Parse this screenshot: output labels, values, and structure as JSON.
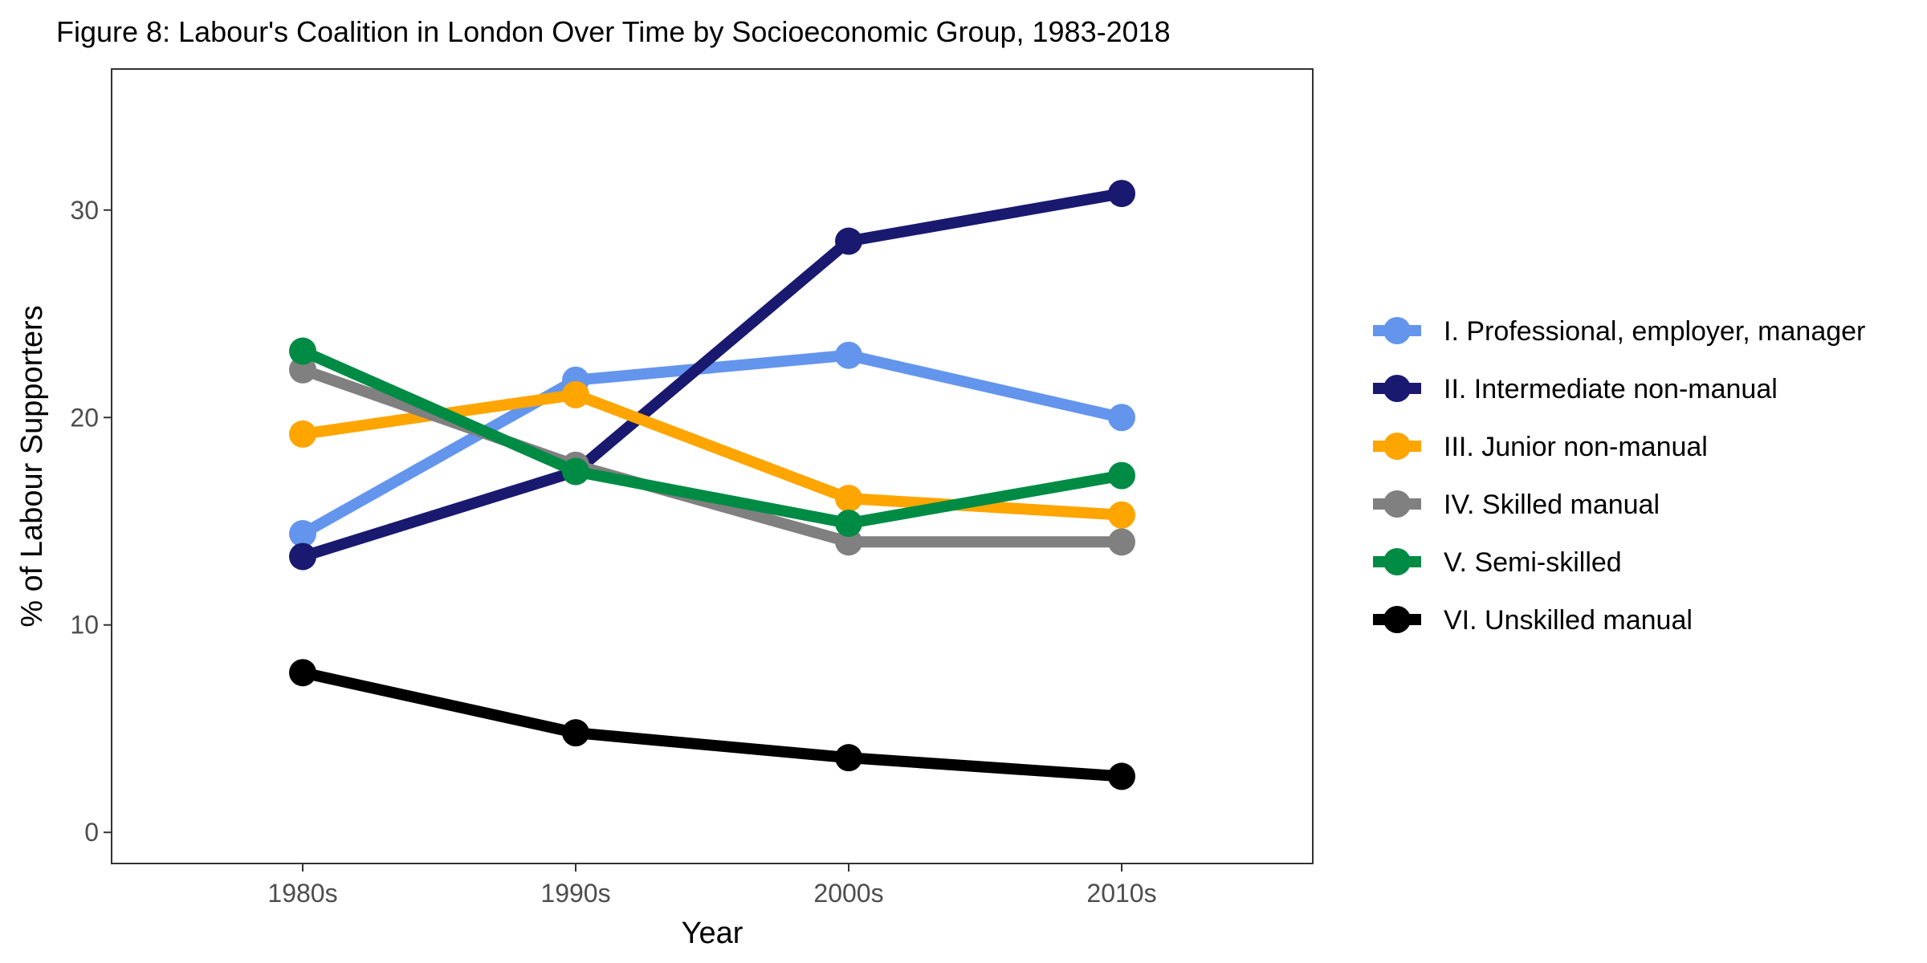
{
  "chart_data": {
    "type": "line",
    "title": "Figure 8: Labour's Coalition in London Over Time by Socioeconomic Group, 1983-2018",
    "xlabel": "Year",
    "ylabel": "% of Labour Supporters",
    "categories": [
      "1980s",
      "1990s",
      "2000s",
      "2010s"
    ],
    "ylim": [
      -1.5,
      36.8
    ],
    "yticks": [
      0,
      10,
      20,
      30
    ],
    "grid": false,
    "legend_position": "right",
    "series": [
      {
        "name": "I. Professional, employer, manager",
        "color": "#6495ED",
        "values": [
          14.4,
          21.8,
          23.0,
          20.0
        ]
      },
      {
        "name": "II. Intermediate non-manual",
        "color": "#191970",
        "values": [
          13.3,
          17.4,
          28.5,
          30.8
        ]
      },
      {
        "name": "III. Junior non-manual",
        "color": "#FFA500",
        "values": [
          19.2,
          21.1,
          16.1,
          15.3
        ]
      },
      {
        "name": "IV. Skilled manual",
        "color": "#808080",
        "values": [
          22.3,
          17.7,
          14.0,
          14.0
        ]
      },
      {
        "name": "V. Semi-skilled",
        "color": "#008B45",
        "values": [
          23.2,
          17.4,
          14.9,
          17.2
        ]
      },
      {
        "name": "VI. Unskilled manual",
        "color": "#000000",
        "values": [
          7.7,
          4.8,
          3.6,
          2.7
        ]
      }
    ]
  }
}
